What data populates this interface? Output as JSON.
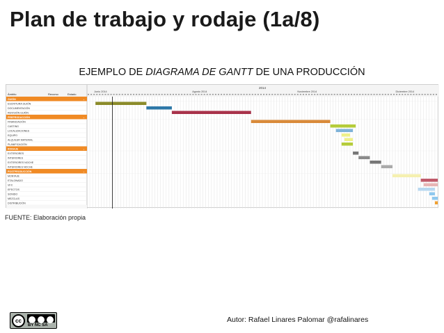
{
  "slide": {
    "title": "Plan de trabajo y rodaje (1a/8)",
    "subtitle_prefix": "EJEMPLO DE ",
    "subtitle_emphasis": "DIAGRAMA DE GANTT",
    "subtitle_suffix": " DE UNA PRODUCCIÓN",
    "source": "FUENTE: Elaboración propia",
    "author": "Autor: Rafael Linares Palomar @rafalinares",
    "license_labels": "BY   NC   SA"
  },
  "gantt": {
    "year": "2014",
    "columns": [
      "Ámbito",
      "Recurso",
      "Estado"
    ],
    "months": [
      "Junio 2014",
      "Agosto 2014",
      "Noviembre 2014",
      "Diciembre 2014"
    ],
    "day_count": 124,
    "today_col": 9,
    "colors": {
      "section": "#f08a24",
      "olive": "#8b8b2a",
      "blue": "#2e78a8",
      "crimson": "#a8324a",
      "orange": "#d98a3a",
      "yellow_green": "#b5cc3a",
      "light_blue": "#7fb3d9",
      "light_yellow": "#eef08a",
      "dark_gray": "#777777",
      "mid_gray": "#8a8a8a",
      "light_gray": "#aaaaaa",
      "pale_yellow": "#f5f0b0",
      "rose": "#c05a6a",
      "pink": "#e8b5b5",
      "pale_blue": "#b8d8f0",
      "cyan_blue": "#8fc8ee",
      "amber": "#f0a030"
    },
    "rows": [
      {
        "type": "section",
        "label": "GUIÓN"
      },
      {
        "type": "task",
        "label": "ESCRITURA GUIÓN",
        "bar": {
          "start": 3,
          "end": 21,
          "color": "olive"
        }
      },
      {
        "type": "task",
        "label": "DOCUMENTACIÓN",
        "bar": {
          "start": 21,
          "end": 30,
          "color": "blue"
        }
      },
      {
        "type": "task",
        "label": "REVISIÓN GUIÓN",
        "bar": {
          "start": 30,
          "end": 58,
          "color": "crimson"
        }
      },
      {
        "type": "section",
        "label": "PREPRODUCCIÓN"
      },
      {
        "type": "task",
        "label": "FINANCIACIÓN",
        "bar": {
          "start": 58,
          "end": 86,
          "color": "orange"
        }
      },
      {
        "type": "task",
        "label": "CASTING",
        "bar": {
          "start": 86,
          "end": 95,
          "color": "yellow_green"
        }
      },
      {
        "type": "task",
        "label": "LOCALIZACIONES",
        "bar": {
          "start": 88,
          "end": 94,
          "color": "light_blue"
        }
      },
      {
        "type": "task",
        "label": "EQUIPO",
        "bar": {
          "start": 90,
          "end": 93,
          "color": "light_yellow"
        }
      },
      {
        "type": "task",
        "label": "ALQUILER MATERIAL",
        "bar": {
          "start": 91,
          "end": 94,
          "color": "light_yellow"
        }
      },
      {
        "type": "task",
        "label": "PLANIFICACIÓN",
        "bar": {
          "start": 90,
          "end": 94,
          "color": "yellow_green"
        }
      },
      {
        "type": "section",
        "label": "RODAJE"
      },
      {
        "type": "task",
        "label": "EXTERIORES",
        "bar": {
          "start": 94,
          "end": 96,
          "color": "dark_gray"
        }
      },
      {
        "type": "task",
        "label": "INTERIORES",
        "bar": {
          "start": 96,
          "end": 100,
          "color": "mid_gray"
        }
      },
      {
        "type": "task",
        "label": "EXTERIORES NOCHE",
        "bar": {
          "start": 100,
          "end": 104,
          "color": "dark_gray"
        }
      },
      {
        "type": "task",
        "label": "INTERIORES NOCHE",
        "bar": {
          "start": 104,
          "end": 108,
          "color": "light_gray"
        }
      },
      {
        "type": "section",
        "label": "POSTPRODUCCIÓN"
      },
      {
        "type": "task",
        "label": "MONTAJE",
        "bar": {
          "start": 108,
          "end": 118,
          "color": "pale_yellow"
        }
      },
      {
        "type": "task",
        "label": "ETALONADO",
        "bar": {
          "start": 118,
          "end": 124,
          "color": "rose"
        }
      },
      {
        "type": "task",
        "label": "VFX",
        "bar": {
          "start": 119,
          "end": 124,
          "color": "pink"
        }
      },
      {
        "type": "task",
        "label": "EFECTOS",
        "bar": {
          "start": 117,
          "end": 123,
          "color": "pale_blue"
        }
      },
      {
        "type": "task",
        "label": "SONIDO",
        "bar": {
          "start": 121,
          "end": 123,
          "color": "cyan_blue"
        }
      },
      {
        "type": "task",
        "label": "MEZCLAS",
        "bar": {
          "start": 122,
          "end": 124,
          "color": "cyan_blue"
        }
      },
      {
        "type": "task",
        "label": "DISTRIBUCIÓN",
        "bar": {
          "start": 123,
          "end": 127,
          "color": "amber"
        }
      }
    ]
  }
}
